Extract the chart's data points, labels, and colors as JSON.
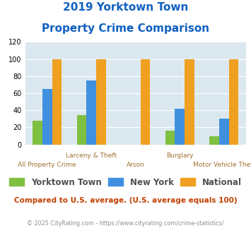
{
  "title_line1": "2019 Yorktown Town",
  "title_line2": "Property Crime Comparison",
  "categories": [
    "All Property Crime",
    "Larceny & Theft",
    "Arson",
    "Burglary",
    "Motor Vehicle Theft"
  ],
  "groups": [
    {
      "label": "Yorktown Town",
      "color": "#80c040",
      "values": [
        28,
        34,
        0,
        16,
        10
      ]
    },
    {
      "label": "New York",
      "color": "#4090e0",
      "values": [
        65,
        75,
        0,
        42,
        30
      ]
    },
    {
      "label": "National",
      "color": "#f0a020",
      "values": [
        100,
        100,
        100,
        100,
        100
      ]
    }
  ],
  "ylim": [
    0,
    120
  ],
  "yticks": [
    0,
    20,
    40,
    60,
    80,
    100,
    120
  ],
  "bar_width": 0.22,
  "plot_bg_color": "#dce8f0",
  "fig_bg_color": "#ffffff",
  "title_color": "#1060c0",
  "xlabel_color": "#a07030",
  "legend_label_color": "#505050",
  "note_text": "Compared to U.S. average. (U.S. average equals 100)",
  "note_color": "#c04000",
  "footer_text": "© 2025 CityRating.com - https://www.cityrating.com/crime-statistics/",
  "footer_color": "#909090",
  "grid_color": "#ffffff"
}
